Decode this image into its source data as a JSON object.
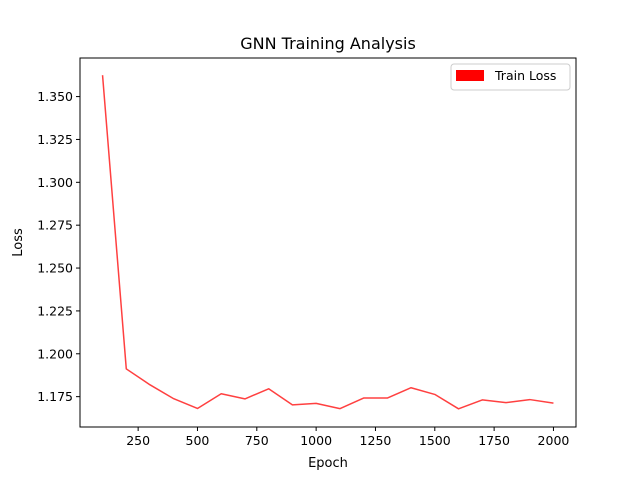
{
  "chart_data": {
    "type": "line",
    "title": "GNN Training Analysis",
    "xlabel": "Epoch",
    "ylabel": "Loss",
    "xlim": [
      5,
      2095
    ],
    "ylim": [
      1.1573,
      1.3725
    ],
    "x_ticks": [
      250,
      500,
      750,
      1000,
      1250,
      1500,
      1750,
      2000
    ],
    "y_ticks": [
      1.175,
      1.2,
      1.225,
      1.25,
      1.275,
      1.3,
      1.325,
      1.35
    ],
    "grid": false,
    "legend_position": "top-right",
    "series": [
      {
        "name": "Train Loss",
        "color": "#ff0000",
        "x": [
          100,
          200,
          300,
          400,
          500,
          600,
          700,
          800,
          900,
          1000,
          1100,
          1200,
          1300,
          1400,
          1500,
          1600,
          1700,
          1800,
          1900,
          2000
        ],
        "values": [
          1.3625,
          1.1912,
          1.1819,
          1.1738,
          1.1681,
          1.1767,
          1.1737,
          1.1796,
          1.1702,
          1.1711,
          1.168,
          1.1742,
          1.1742,
          1.1802,
          1.1763,
          1.1679,
          1.1731,
          1.1715,
          1.1733,
          1.1712
        ]
      }
    ]
  }
}
